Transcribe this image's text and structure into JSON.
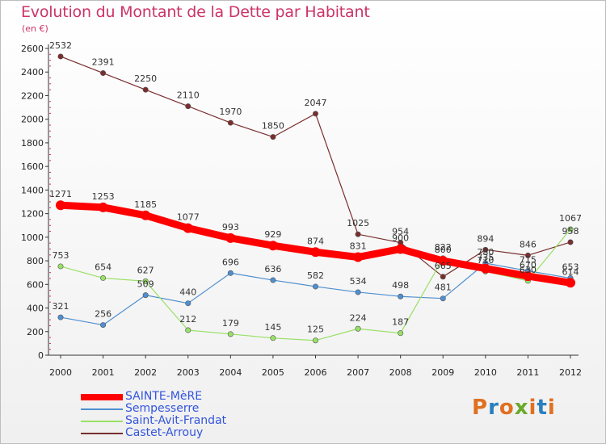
{
  "header": {
    "title": "Evolution du Montant de la Dette par Habitant",
    "subtitle": "(en €)"
  },
  "logo": {
    "text": "Proxiti",
    "colors": [
      "#e07020",
      "#2a7fc0",
      "#e07020",
      "#6aaa2a",
      "#e07020",
      "#2a7fc0",
      "#e07020"
    ]
  },
  "chart_data": {
    "type": "line",
    "title": "Evolution du Montant de la Dette par Habitant",
    "subtitle": "(en €)",
    "x": [
      "2000",
      "2001",
      "2002",
      "2003",
      "2004",
      "2005",
      "2006",
      "2007",
      "2008",
      "2009",
      "2010",
      "2011",
      "2012"
    ],
    "ylim": [
      0,
      2600
    ],
    "yticks": [
      0,
      200,
      400,
      600,
      800,
      1000,
      1200,
      1400,
      1600,
      1800,
      2000,
      2200,
      2400,
      2600
    ],
    "grid": false,
    "legend_position": "bottom-left",
    "series": [
      {
        "name": "SAINTE-MèRE",
        "color": "#ff0000",
        "values": [
          1271,
          1253,
          1185,
          1077,
          993,
          929,
          874,
          831,
          900,
          800,
          735,
          670,
          614
        ],
        "labels": [
          "1271",
          "1253",
          "1185",
          "1077",
          "993",
          "929",
          "874",
          "831",
          "900",
          "800",
          "735",
          "670",
          "614"
        ]
      },
      {
        "name": "Sempesserre",
        "color": "#4f8fd0",
        "values": [
          321,
          256,
          509,
          440,
          696,
          636,
          582,
          534,
          498,
          481,
          780,
          715,
          653
        ],
        "labels": [
          "321",
          "256",
          "509",
          "440",
          "696",
          "636",
          "582",
          "534",
          "498",
          "481",
          "780",
          "715",
          "653"
        ]
      },
      {
        "name": "Saint-Avit-Frandat",
        "color": "#99e066",
        "values": [
          753,
          654,
          627,
          212,
          179,
          145,
          125,
          224,
          187,
          822,
          710,
          630,
          1067
        ],
        "labels": [
          "753",
          "654",
          "627",
          "212",
          "179",
          "145",
          "125",
          "224",
          "187",
          "822",
          "710",
          "630",
          "1067"
        ]
      },
      {
        "name": "Castet-Arrouy",
        "color": "#7a2e2e",
        "values": [
          2532,
          2391,
          2250,
          2110,
          1970,
          1850,
          2047,
          1025,
          954,
          665,
          894,
          846,
          958
        ],
        "labels": [
          "2532",
          "2391",
          "2250",
          "2110",
          "1970",
          "1850",
          "2047",
          "1025",
          "954",
          "665",
          "894",
          "846",
          "958"
        ]
      }
    ]
  }
}
